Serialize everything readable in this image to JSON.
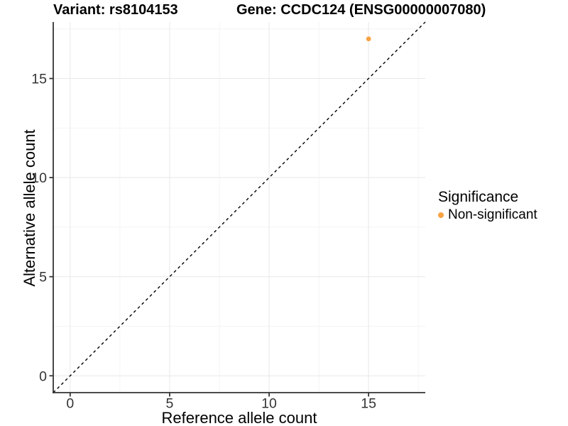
{
  "header": {
    "left_title": "Variant: rs8104153",
    "right_title": "Gene: CCDC124 (ENSG00000007080)"
  },
  "colors": {
    "background": "#ffffff",
    "grid_major": "#e8e8e8",
    "grid_minor": "#f4f4f4",
    "axis_line": "#333333",
    "tick_text": "#333333",
    "title_text": "#000000",
    "point_orange": "#F9A242",
    "reference_line": "#000000"
  },
  "chart_data": {
    "type": "scatter",
    "titles": {
      "left": "Variant: rs8104153",
      "right": "Gene: CCDC124 (ENSG00000007080)"
    },
    "xlabel": "Reference allele count",
    "ylabel": "Alternative allele count",
    "xlim": [
      -0.85,
      17.85
    ],
    "ylim": [
      -0.85,
      17.85
    ],
    "x_major_ticks": [
      0,
      5,
      10,
      15
    ],
    "y_major_ticks": [
      0,
      5,
      10,
      15
    ],
    "x_minor_ticks": [
      2.5,
      7.5,
      12.5,
      17.5
    ],
    "y_minor_ticks": [
      2.5,
      7.5,
      12.5,
      17.5
    ],
    "grid": true,
    "points": [
      {
        "x": 15,
        "y": 17,
        "series": "Non-significant"
      }
    ],
    "reference_line": {
      "kind": "identity",
      "equation": "y = x",
      "dashed": true,
      "color": "#000000"
    },
    "legend": {
      "position": "right",
      "title": "Significance",
      "items": [
        {
          "label": "Non-significant",
          "color": "#F9A242"
        }
      ]
    }
  }
}
